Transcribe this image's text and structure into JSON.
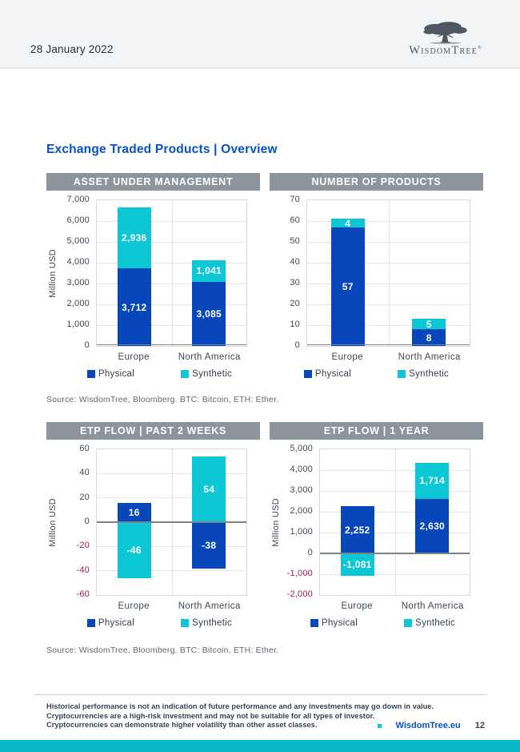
{
  "header": {
    "date": "28 January 2022",
    "logo_text": "WisdomTree",
    "logo_registered": "®"
  },
  "page_title": "Exchange Traded Products | Overview",
  "sources": [
    "Source: WisdomTree, Bloomberg. BTC: Bitcoin, ETH: Ether.",
    "Source: WisdomTree, Bloomberg. BTC: Bitcoin, ETH: Ether."
  ],
  "chart_data": [
    {
      "type": "bar",
      "stacked": true,
      "title": "ASSET UNDER MANAGEMENT",
      "ylabel": "Million USD",
      "xlabel": "",
      "categories": [
        "Europe",
        "North America"
      ],
      "series": [
        {
          "name": "Physical",
          "color": "#0847ba",
          "values": [
            3712,
            3085
          ]
        },
        {
          "name": "Synthetic",
          "color": "#0bc8d4",
          "values": [
            2936,
            1041
          ]
        }
      ],
      "ylim": [
        0,
        7000
      ],
      "ytick_step": 1000,
      "grid": true,
      "legend_position": "bottom"
    },
    {
      "type": "bar",
      "stacked": true,
      "title": "NUMBER OF PRODUCTS",
      "ylabel": "",
      "xlabel": "",
      "categories": [
        "Europe",
        "North America"
      ],
      "series": [
        {
          "name": "Physical",
          "color": "#0847ba",
          "values": [
            57,
            8
          ]
        },
        {
          "name": "Synthetic",
          "color": "#0bc8d4",
          "values": [
            4,
            5
          ]
        }
      ],
      "ylim": [
        0,
        70
      ],
      "ytick_step": 10,
      "grid": true,
      "legend_position": "bottom"
    },
    {
      "type": "bar",
      "stacked": true,
      "title": "ETP FLOW | PAST 2 WEEKS",
      "ylabel": "Million USD",
      "xlabel": "",
      "categories": [
        "Europe",
        "North America"
      ],
      "series": [
        {
          "name": "Physical",
          "color": "#0847ba",
          "values": [
            16,
            -38
          ]
        },
        {
          "name": "Synthetic",
          "color": "#0bc8d4",
          "values": [
            -46,
            54
          ]
        }
      ],
      "ylim": [
        -60,
        60
      ],
      "ytick_step": 20,
      "grid": true,
      "legend_position": "bottom"
    },
    {
      "type": "bar",
      "stacked": true,
      "title": "ETP FLOW | 1 YEAR",
      "ylabel": "Million USD",
      "xlabel": "",
      "categories": [
        "Europe",
        "North America"
      ],
      "series": [
        {
          "name": "Physical",
          "color": "#0847ba",
          "values": [
            2252,
            2630
          ]
        },
        {
          "name": "Synthetic",
          "color": "#0bc8d4",
          "values": [
            -1081,
            1714
          ]
        }
      ],
      "ylim": [
        -2000,
        5000
      ],
      "ytick_step": 1000,
      "grid": true,
      "legend_position": "bottom"
    }
  ],
  "colors": {
    "physical": "#0847ba",
    "synthetic": "#0bc8d4",
    "title_blue": "#0550cf",
    "negative_tick": "#a31b59",
    "footer_bar": "#09b7c9",
    "chart_header": "#8d959c"
  },
  "footer": {
    "disclaimer_lines": [
      "Historical performance is not an indication of future performance and any investments may go down in value.",
      "Cryptocurrencies are a high-risk investment and may not be suitable for all types of investor.",
      "Cryptocurrencies can demonstrate higher volatility than other asset classes."
    ],
    "site_link": "WisdomTree.eu",
    "page_number": "12"
  }
}
